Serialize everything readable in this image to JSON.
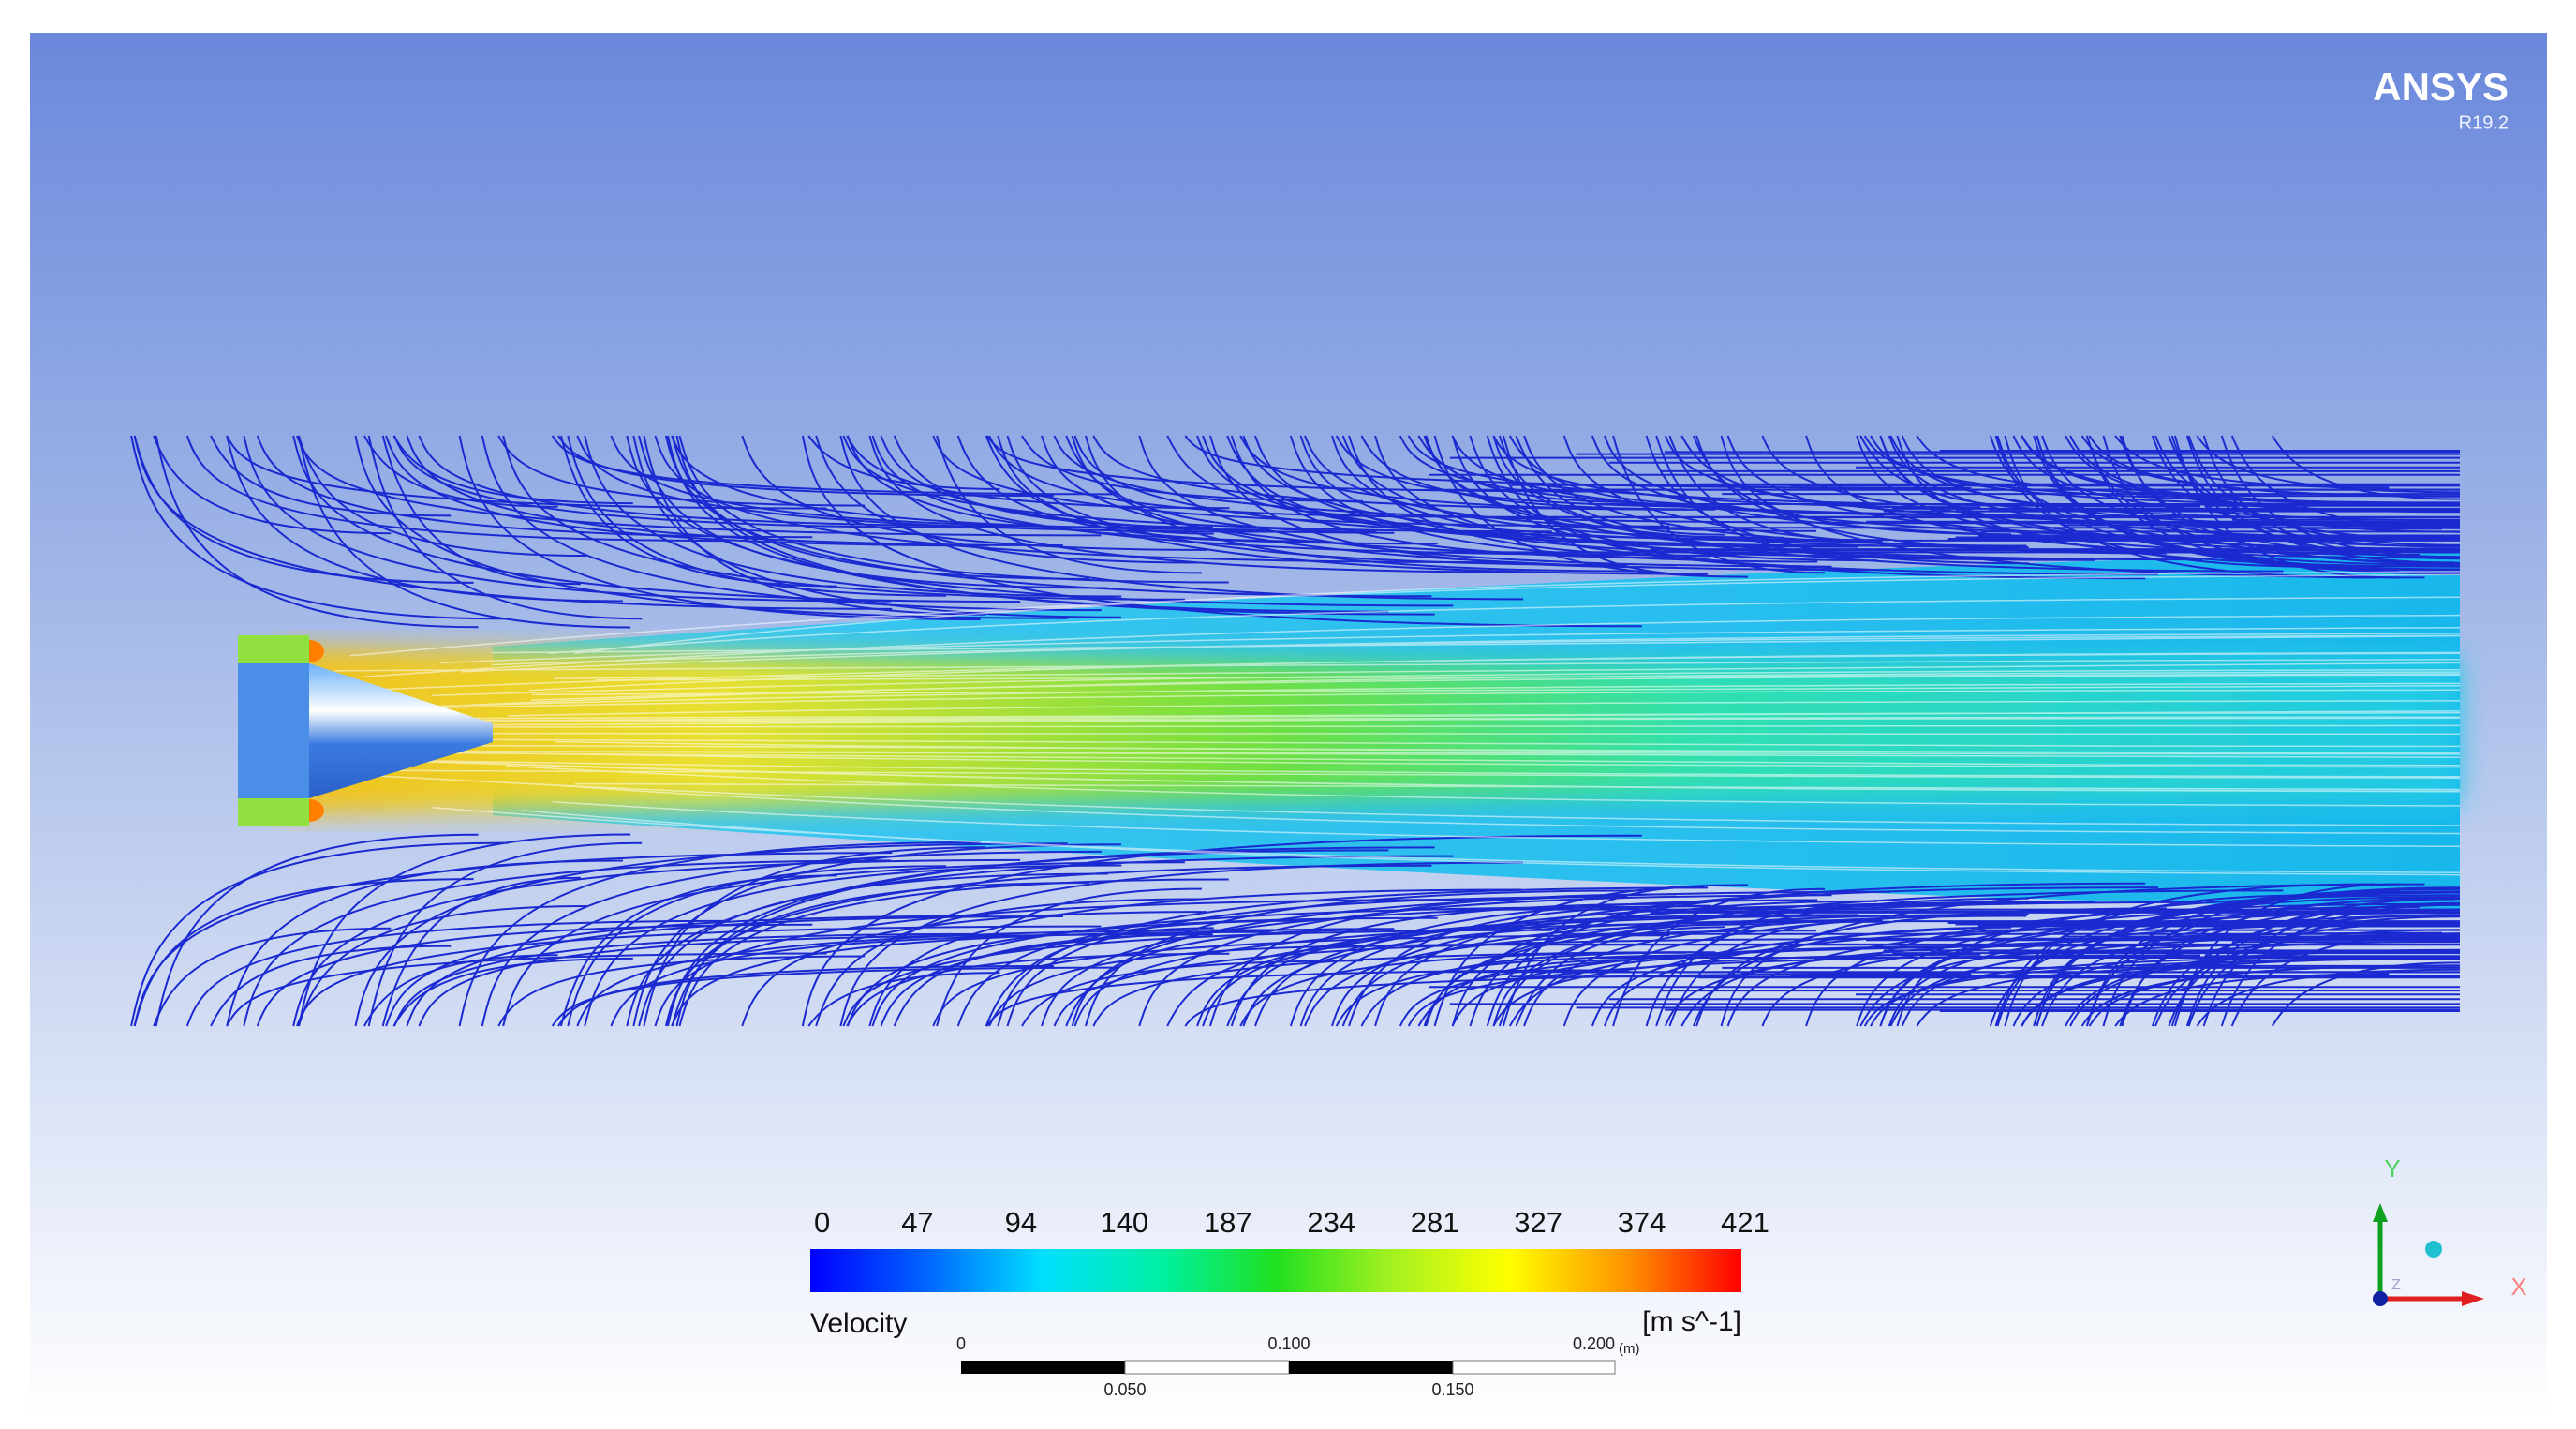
{
  "logo": {
    "brand": "ANSYS",
    "version": "R19.2"
  },
  "legend": {
    "title": "Velocity",
    "unit": "[m s^-1]",
    "ticks": [
      "0",
      "47",
      "94",
      "140",
      "187",
      "234",
      "281",
      "327",
      "374",
      "421"
    ]
  },
  "scale_bar": {
    "top_labels": [
      "0",
      "0.100",
      "0.200"
    ],
    "unit": "(m)",
    "bottom_labels": [
      "0.050",
      "0.150"
    ]
  },
  "axes": {
    "y": "Y",
    "x": "X",
    "z": "Z"
  }
}
